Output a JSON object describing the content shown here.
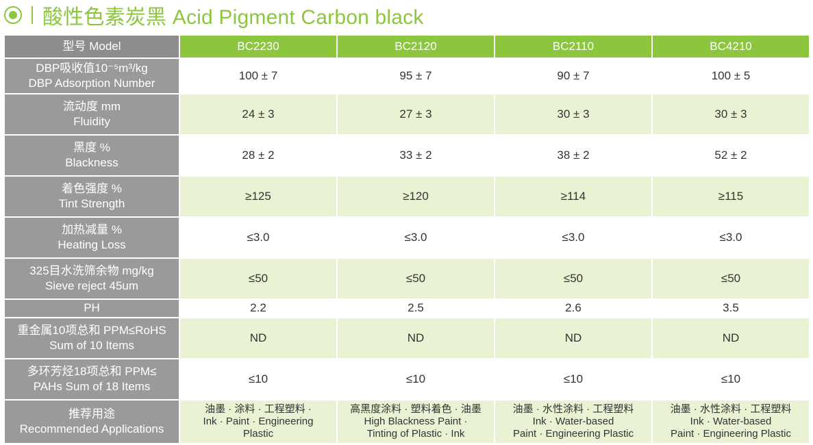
{
  "title": "酸性色素炭黑 Acid Pigment Carbon black",
  "header": {
    "label": "型号 Model",
    "models": [
      "BC2230",
      "BC2120",
      "BC2110",
      "BC4210"
    ]
  },
  "rows": [
    {
      "label_cn": "DBP吸收值10⁻⁵m³/kg",
      "label_en": "DBP Adsorption Number",
      "values": [
        "100 ± 7",
        "95 ± 7",
        "90 ± 7",
        "100 ± 5"
      ]
    },
    {
      "label_cn": "流动度  mm",
      "label_en": "Fluidity",
      "values": [
        "24 ± 3",
        "27 ± 3",
        "30 ± 3",
        "30 ± 3"
      ]
    },
    {
      "label_cn": "黑度  %",
      "label_en": "Blackness",
      "values": [
        "28 ± 2",
        "33 ± 2",
        "38 ± 2",
        "52 ± 2"
      ]
    },
    {
      "label_cn": "着色强度  %",
      "label_en": "Tint Strength",
      "values": [
        "≥125",
        "≥120",
        "≥114",
        "≥115"
      ]
    },
    {
      "label_cn": "加热减量  %",
      "label_en": "Heating Loss",
      "values": [
        "≤3.0",
        "≤3.0",
        "≤3.0",
        "≤3.0"
      ]
    },
    {
      "label_cn": "325目水洗筛余物 mg/kg",
      "label_en": "Sieve reject 45um",
      "values": [
        "≤50",
        "≤50",
        "≤50",
        "≤50"
      ]
    },
    {
      "label_cn": "PH",
      "label_en": "",
      "values": [
        "2.2",
        "2.5",
        "2.6",
        "3.5"
      ]
    },
    {
      "label_cn": "重金属10项总和 PPM≤RoHS",
      "label_en": "Sum of 10 Items",
      "values": [
        "ND",
        "ND",
        "ND",
        "ND"
      ]
    },
    {
      "label_cn": "多环芳烃18项总和 PPM≤",
      "label_en": "PAHs  Sum of 18 Items",
      "values": [
        "≤10",
        "≤10",
        "≤10",
        "≤10"
      ]
    }
  ],
  "applications": {
    "label_cn": "推荐用途",
    "label_en": "Recommended Applications",
    "values": [
      {
        "cn": "油墨 · 涂料 · 工程塑料 ·",
        "en1": "Ink · Paint · Engineering",
        "en2": "Plastic"
      },
      {
        "cn": "高黑度涂料 · 塑料着色 · 油墨",
        "en1": "High Blackness Paint ·",
        "en2": "Tinting of Plastic · Ink"
      },
      {
        "cn": "油墨 · 水性涂料 · 工程塑料",
        "en1": "Ink · Water-based",
        "en2": "Paint · Engineering Plastic"
      },
      {
        "cn": "油墨 · 水性涂料 · 工程塑料",
        "en1": "Ink · Water-based",
        "en2": "Paint · Engineering Plastic"
      }
    ]
  },
  "colors": {
    "accent": "#8cc63f",
    "label_bg": "#9a9a9a",
    "header_label_bg": "#8d8d8d",
    "stripe_bg": "#e9f3d4"
  },
  "icons": {
    "title_bullet": "circle-bullet-icon"
  }
}
